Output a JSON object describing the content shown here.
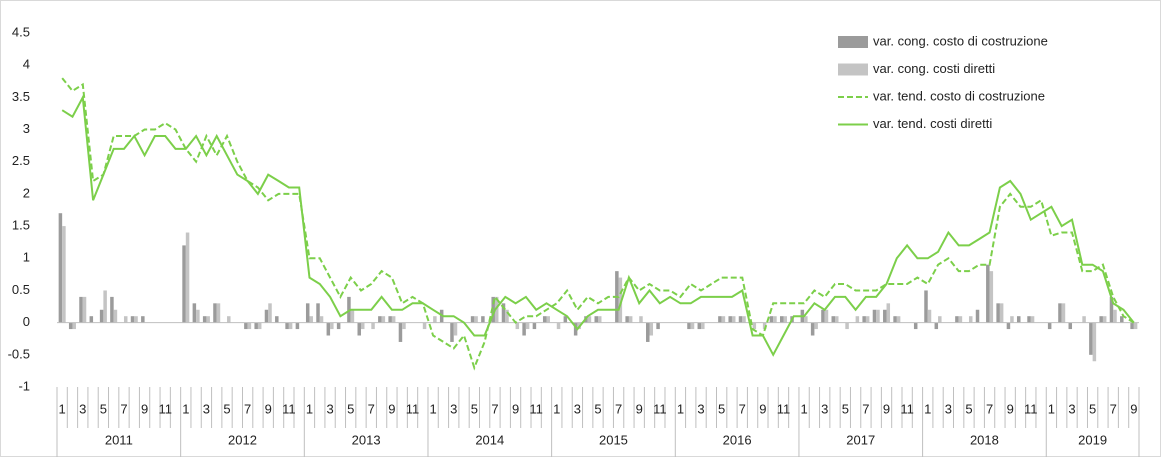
{
  "chart_data": {
    "type": "combo",
    "ylim": [
      -1,
      4.5
    ],
    "yticks": [
      4.5,
      4,
      3.5,
      3,
      2.5,
      2,
      1.5,
      1,
      0.5,
      0,
      -0.5,
      -1
    ],
    "legend": "top-right",
    "categories": [
      "1",
      null,
      "3",
      null,
      "5",
      null,
      "7",
      null,
      "9",
      null,
      "11",
      null,
      "1",
      null,
      "3",
      null,
      "5",
      null,
      "7",
      null,
      "9",
      null,
      "11",
      null,
      "1",
      null,
      "3",
      null,
      "5",
      null,
      "7",
      null,
      "9",
      null,
      "11",
      null,
      "1",
      null,
      "3",
      null,
      "5",
      null,
      "7",
      null,
      "9",
      null,
      "11",
      null,
      "1",
      null,
      "3",
      null,
      "5",
      null,
      "7",
      null,
      "9",
      null,
      "11",
      null,
      "1",
      null,
      "3",
      null,
      "5",
      null,
      "7",
      null,
      "9",
      null,
      "11",
      null,
      "1",
      null,
      "3",
      null,
      "5",
      null,
      "7",
      null,
      "9",
      null,
      "11",
      null,
      "1",
      null,
      "3",
      null,
      "5",
      null,
      "7",
      null,
      "9",
      null,
      "11",
      null,
      "1",
      null,
      "3",
      null,
      "5",
      null,
      "7",
      null,
      "9"
    ],
    "groups": [
      "2011",
      "2012",
      "2013",
      "2014",
      "2015",
      "2016",
      "2017",
      "2018",
      "2019"
    ],
    "series": [
      {
        "name": "var. cong. costo di costruzione",
        "type": "bar",
        "color": "#9b9b9b",
        "values": [
          1.7,
          -0.1,
          0.4,
          0.1,
          0.2,
          0.4,
          0.0,
          0.1,
          0.1,
          0.0,
          0.0,
          0.0,
          1.2,
          0.3,
          0.1,
          0.3,
          0.0,
          0.0,
          -0.1,
          -0.1,
          0.2,
          0.1,
          -0.1,
          -0.1,
          0.3,
          0.3,
          -0.2,
          -0.1,
          0.4,
          -0.2,
          0.0,
          0.1,
          0.1,
          -0.3,
          0.0,
          0.0,
          0.0,
          0.2,
          -0.3,
          0.0,
          0.1,
          0.1,
          0.4,
          0.3,
          0.0,
          -0.2,
          -0.1,
          0.1,
          0.0,
          0.1,
          -0.2,
          0.1,
          0.1,
          0.0,
          0.8,
          0.1,
          0.0,
          -0.3,
          -0.1,
          0.0,
          0.0,
          -0.1,
          -0.1,
          0.0,
          0.1,
          0.1,
          0.1,
          0.0,
          0.0,
          0.1,
          0.1,
          0.1,
          0.2,
          -0.2,
          0.2,
          0.1,
          0.0,
          0.0,
          0.1,
          0.2,
          0.2,
          0.1,
          0.0,
          -0.1,
          0.5,
          -0.1,
          0.0,
          0.1,
          0.0,
          0.2,
          0.9,
          0.3,
          -0.1,
          0.1,
          0.1,
          0.0,
          -0.1,
          0.3,
          -0.1,
          0.0,
          -0.5,
          0.1,
          0.4,
          0.1,
          -0.1
        ]
      },
      {
        "name": "var. cong. costi diretti",
        "type": "bar",
        "color": "#c4c4c4",
        "values": [
          1.5,
          -0.1,
          0.4,
          0.0,
          0.5,
          0.2,
          0.1,
          0.1,
          0.0,
          0.0,
          0.0,
          0.0,
          1.4,
          0.2,
          0.1,
          0.3,
          0.1,
          0.0,
          -0.1,
          -0.1,
          0.3,
          0.0,
          -0.1,
          0.0,
          0.1,
          0.1,
          -0.1,
          0.0,
          0.2,
          -0.1,
          -0.1,
          0.1,
          0.1,
          -0.1,
          0.0,
          -0.1,
          0.1,
          0.0,
          -0.2,
          0.0,
          0.1,
          0.0,
          0.4,
          0.2,
          -0.1,
          -0.1,
          0.0,
          0.1,
          -0.1,
          0.0,
          -0.1,
          0.1,
          0.1,
          0.0,
          0.7,
          0.1,
          0.1,
          -0.2,
          0.0,
          0.0,
          0.0,
          -0.1,
          -0.1,
          0.0,
          0.1,
          0.1,
          0.1,
          -0.1,
          -0.1,
          0.1,
          0.1,
          0.0,
          0.1,
          -0.1,
          0.2,
          0.1,
          -0.1,
          0.1,
          0.1,
          0.2,
          0.3,
          0.1,
          0.0,
          0.0,
          0.2,
          0.1,
          0.0,
          0.1,
          0.1,
          0.0,
          0.8,
          0.3,
          0.1,
          0.0,
          0.1,
          0.0,
          0.0,
          0.3,
          0.0,
          0.1,
          -0.6,
          0.1,
          0.2,
          0.0,
          -0.1
        ]
      },
      {
        "name": "var. tend. costo di costruzione",
        "type": "line",
        "dashed": true,
        "color": "#7ccf4a",
        "values": [
          3.8,
          3.6,
          3.7,
          2.2,
          2.3,
          2.9,
          2.9,
          2.9,
          3.0,
          3.0,
          3.1,
          3.0,
          2.7,
          2.5,
          2.9,
          2.6,
          2.9,
          2.5,
          2.2,
          2.1,
          1.9,
          2.0,
          2.0,
          2.0,
          1.0,
          1.0,
          0.7,
          0.4,
          0.7,
          0.5,
          0.6,
          0.8,
          0.7,
          0.3,
          0.4,
          0.3,
          -0.2,
          -0.3,
          -0.4,
          -0.2,
          -0.7,
          -0.3,
          0.4,
          0.2,
          0.0,
          0.1,
          0.1,
          0.2,
          0.3,
          0.5,
          0.2,
          0.4,
          0.3,
          0.4,
          0.4,
          0.7,
          0.5,
          0.6,
          0.5,
          0.5,
          0.4,
          0.6,
          0.5,
          0.6,
          0.7,
          0.7,
          0.7,
          -0.1,
          -0.2,
          0.3,
          0.3,
          0.3,
          0.3,
          0.5,
          0.4,
          0.6,
          0.6,
          0.5,
          0.5,
          0.5,
          0.6,
          0.6,
          0.6,
          0.7,
          0.6,
          0.9,
          1.0,
          0.8,
          0.8,
          0.9,
          0.9,
          1.8,
          2.0,
          1.8,
          1.8,
          1.9,
          1.35,
          1.4,
          1.4,
          0.8,
          0.8,
          0.9,
          0.4,
          0.1,
          0.0
        ]
      },
      {
        "name": "var. tend. costi diretti",
        "type": "line",
        "dashed": false,
        "color": "#7ccf4a",
        "values": [
          3.3,
          3.2,
          3.5,
          1.9,
          2.3,
          2.7,
          2.7,
          2.9,
          2.6,
          2.9,
          2.9,
          2.7,
          2.7,
          2.9,
          2.6,
          2.9,
          2.6,
          2.3,
          2.2,
          2.0,
          2.3,
          2.2,
          2.1,
          2.1,
          0.7,
          0.6,
          0.4,
          0.1,
          0.2,
          0.2,
          0.2,
          0.4,
          0.2,
          0.2,
          0.3,
          0.3,
          0.2,
          0.1,
          0.1,
          0.0,
          -0.2,
          -0.2,
          0.2,
          0.4,
          0.3,
          0.4,
          0.2,
          0.3,
          0.2,
          0.1,
          -0.1,
          0.1,
          0.2,
          0.2,
          0.2,
          0.7,
          0.3,
          0.5,
          0.3,
          0.4,
          0.3,
          0.3,
          0.4,
          0.4,
          0.4,
          0.4,
          0.5,
          -0.2,
          -0.2,
          -0.5,
          -0.2,
          0.1,
          0.1,
          0.3,
          0.2,
          0.4,
          0.4,
          0.2,
          0.4,
          0.4,
          0.6,
          1.0,
          1.2,
          1.0,
          1.0,
          1.1,
          1.4,
          1.2,
          1.2,
          1.3,
          1.4,
          2.1,
          2.2,
          2.0,
          1.6,
          1.7,
          1.8,
          1.5,
          1.6,
          0.9,
          0.9,
          0.8,
          0.3,
          0.2,
          0.0
        ]
      }
    ]
  }
}
